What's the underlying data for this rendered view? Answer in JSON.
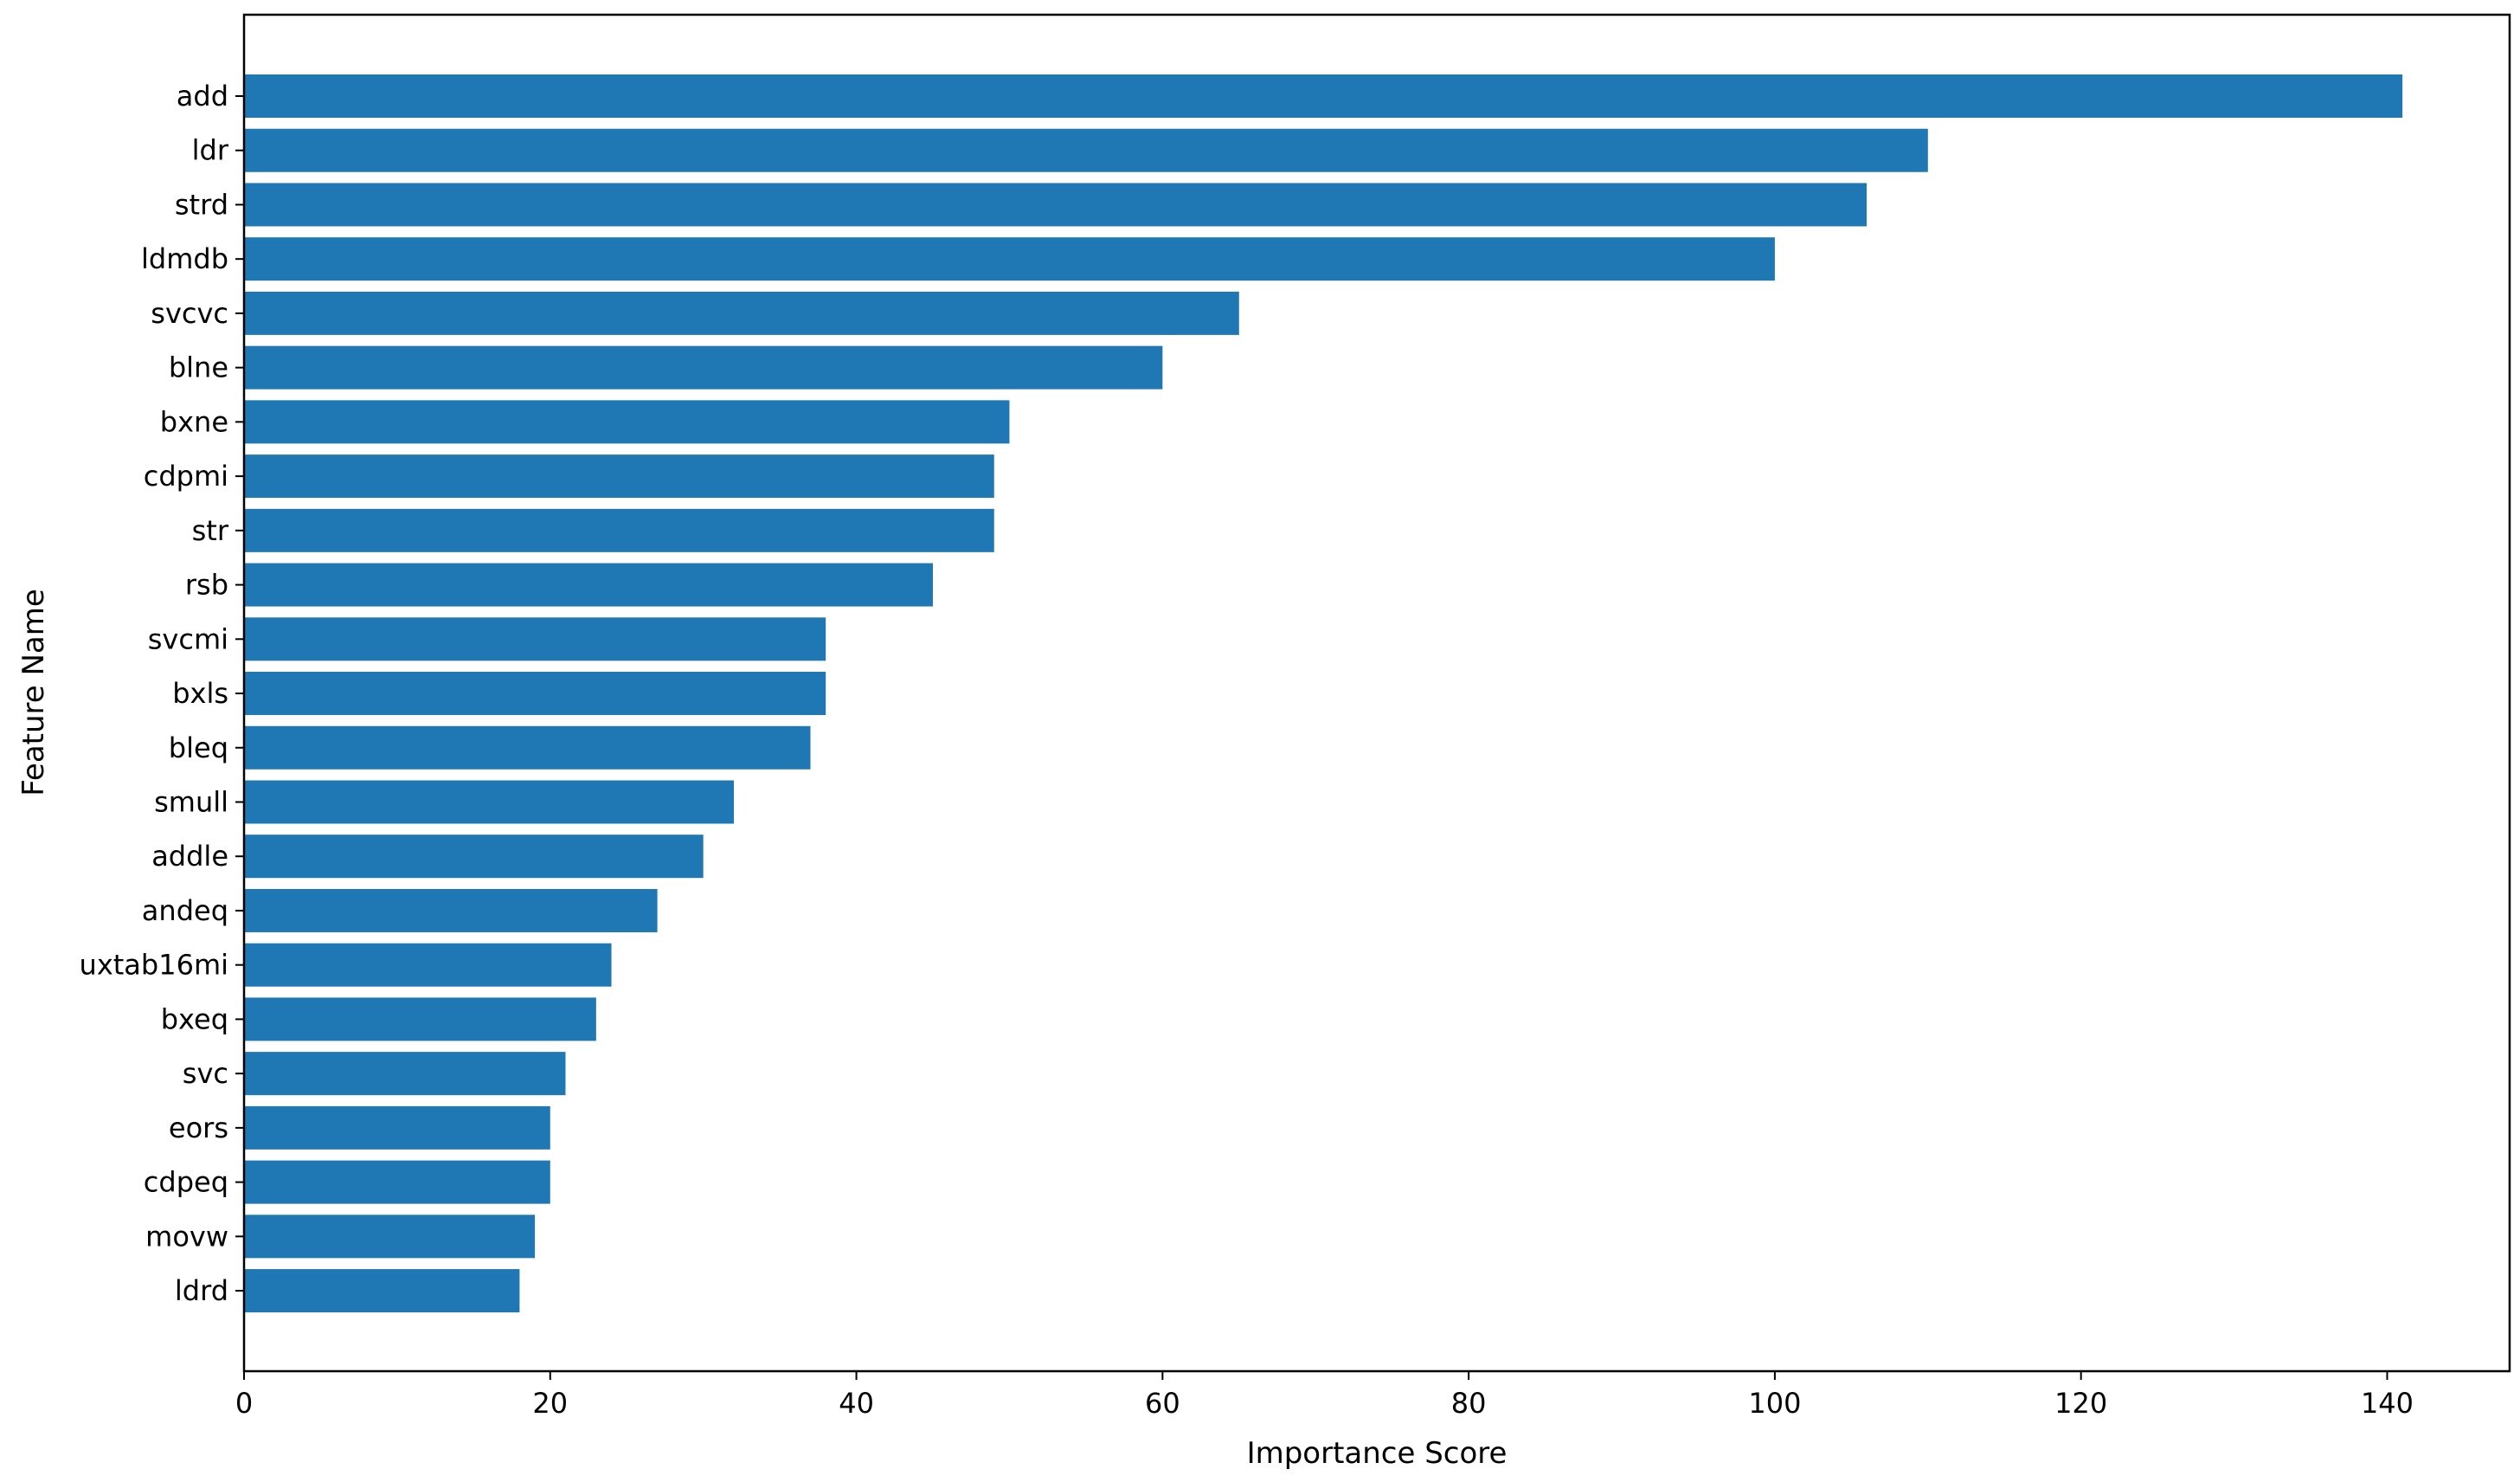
{
  "chart_data": {
    "type": "bar",
    "orientation": "horizontal",
    "title": "",
    "xlabel": "Importance Score",
    "ylabel": "Feature Name",
    "xlim": [
      0,
      148
    ],
    "xticks": [
      0,
      20,
      40,
      60,
      80,
      100,
      120,
      140
    ],
    "grid": false,
    "legend": "none",
    "bar_color": "#1f77b4",
    "categories": [
      "add",
      "ldr",
      "strd",
      "ldmdb",
      "svcvc",
      "blne",
      "bxne",
      "cdpmi",
      "str",
      "rsb",
      "svcmi",
      "bxls",
      "bleq",
      "smull",
      "addle",
      "andeq",
      "uxtab16mi",
      "bxeq",
      "svc",
      "eors",
      "cdpeq",
      "movw",
      "ldrd"
    ],
    "values": [
      141,
      110,
      106,
      100,
      65,
      60,
      50,
      49,
      49,
      45,
      38,
      38,
      37,
      32,
      30,
      27,
      24,
      23,
      21,
      20,
      20,
      19,
      18
    ]
  }
}
